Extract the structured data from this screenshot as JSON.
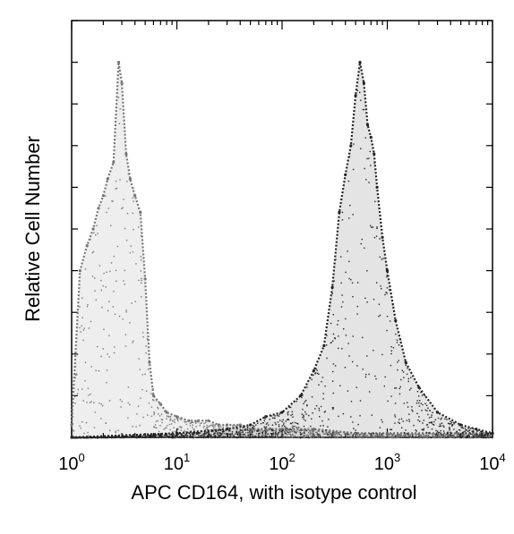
{
  "chart_data": {
    "type": "area",
    "xlabel": "APC CD164, with isotype control",
    "ylabel": "Relative Cell Number",
    "x_scale": "log",
    "xlim": [
      1,
      10000
    ],
    "x_ticks": [
      {
        "value": 1,
        "base": "10",
        "exp": "0"
      },
      {
        "value": 10,
        "base": "10",
        "exp": "1"
      },
      {
        "value": 100,
        "base": "10",
        "exp": "2"
      },
      {
        "value": 1000,
        "base": "10",
        "exp": "3"
      },
      {
        "value": 10000,
        "base": "10",
        "exp": "4"
      }
    ],
    "ylim": [
      0,
      100
    ],
    "y_tick_values": [
      10,
      20,
      30,
      40,
      50,
      60,
      70,
      80,
      90,
      100
    ],
    "grid": false,
    "legend": "none",
    "colors": {
      "frame": "#000000",
      "isotype": "#777777",
      "stained": "#222222"
    },
    "series": [
      {
        "x": [
          1.0,
          1.2,
          1.4,
          1.6,
          1.8,
          2.0,
          2.2,
          2.5,
          2.8,
          3.0,
          3.3,
          3.6,
          4.0,
          4.5,
          5.0,
          5.5,
          6.0,
          7.0,
          8.0,
          10,
          13,
          16,
          20,
          25,
          30,
          40,
          50,
          70,
          100,
          200,
          500,
          1000,
          3000,
          10000
        ],
        "y": [
          3,
          40,
          46,
          50,
          55,
          58,
          62,
          66,
          90,
          85,
          68,
          62,
          58,
          54,
          38,
          18,
          10,
          8,
          6,
          5,
          4,
          4,
          4,
          3,
          3,
          3,
          2,
          2,
          2,
          2,
          1,
          1,
          1,
          1
        ]
      },
      {
        "x": [
          1.0,
          10,
          30,
          50,
          70,
          100,
          150,
          200,
          250,
          300,
          350,
          400,
          450,
          500,
          550,
          600,
          650,
          700,
          750,
          800,
          900,
          1000,
          1200,
          1500,
          2000,
          3000,
          5000,
          7000,
          10000
        ],
        "y": [
          0,
          1,
          2,
          3,
          5,
          6,
          10,
          16,
          22,
          36,
          54,
          63,
          70,
          82,
          90,
          85,
          75,
          72,
          68,
          60,
          48,
          40,
          28,
          18,
          12,
          6,
          3,
          2,
          1
        ]
      }
    ]
  }
}
